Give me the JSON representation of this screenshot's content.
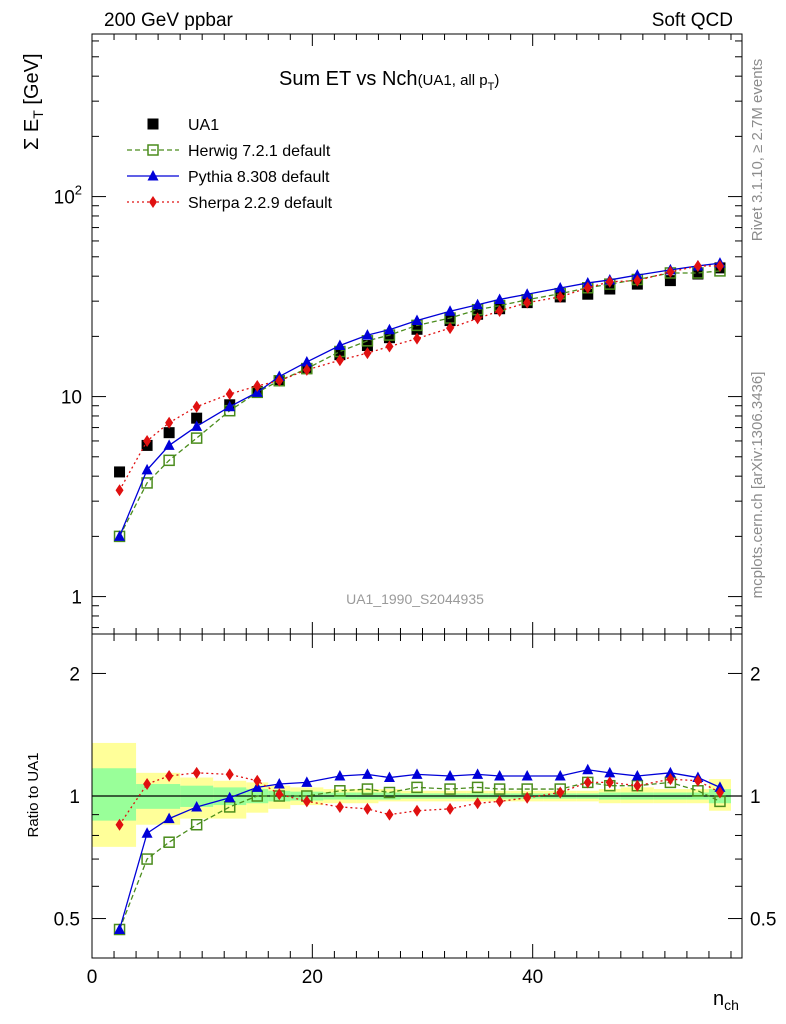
{
  "header": {
    "left": "200 GeV ppbar",
    "right": "Soft QCD"
  },
  "side_text": {
    "top": "Rivet 3.1.10, ≥ 2.7M events",
    "bottom": "mcplots.cern.ch [arXiv:1306.3436]"
  },
  "analysis_id": "UA1_1990_S2044935",
  "chart_data": [
    {
      "type": "line",
      "title": "Sum ET vs Nch",
      "title_suffix": "(UA1, all p",
      "title_sub": "T",
      "title_close": ")",
      "ylabel": "Σ E",
      "ylabel_sub": "T",
      "ylabel_unit": " [GeV]",
      "yscale": "log",
      "ylim": [
        0.65,
        650
      ],
      "xlim": [
        0,
        59
      ],
      "yticks": [
        {
          "v": 1,
          "label": "1",
          "sup": ""
        },
        {
          "v": 10,
          "label": "10",
          "sup": ""
        },
        {
          "v": 100,
          "label": "10",
          "sup": "2"
        }
      ],
      "x": [
        2.5,
        5,
        7,
        9.5,
        12.5,
        15,
        17,
        19.5,
        22.5,
        25,
        27,
        29.5,
        32.5,
        35,
        37,
        39.5,
        42.5,
        45,
        47,
        49.5,
        52.5,
        55,
        57
      ],
      "legend": "top-left",
      "series": [
        {
          "name": "UA1",
          "color": "#000000",
          "marker": "square",
          "line": "none",
          "values": [
            4.2,
            5.7,
            6.6,
            7.8,
            9.1,
            10.6,
            12.0,
            13.8,
            16.2,
            18.0,
            19.7,
            21.7,
            24.0,
            25.8,
            27.5,
            29.5,
            31.5,
            32.5,
            34.5,
            36.5,
            38.0,
            41.0,
            44.0
          ]
        },
        {
          "name": "Herwig 7.2.1 default",
          "color": "#4a8c1c",
          "marker": "open-square",
          "line": "dashed",
          "values": [
            2.0,
            3.7,
            4.8,
            6.2,
            8.5,
            10.5,
            12.0,
            13.8,
            16.8,
            19.0,
            20.3,
            22.7,
            24.7,
            27.2,
            28.5,
            30.5,
            32.7,
            35.0,
            36.5,
            38.5,
            41.5,
            41.5,
            42.5
          ]
        },
        {
          "name": "Pythia 8.308 default",
          "color": "#0000d8",
          "marker": "triangle",
          "line": "solid",
          "values": [
            2.0,
            4.3,
            5.7,
            7.1,
            8.9,
            10.5,
            12.6,
            14.9,
            18.0,
            20.3,
            21.6,
            24.0,
            26.7,
            28.8,
            30.6,
            32.5,
            34.9,
            37.0,
            38.3,
            40.5,
            43.0,
            45.0,
            46.5
          ]
        },
        {
          "name": "Sherpa 2.2.9 default",
          "color": "#e01010",
          "marker": "diamond",
          "line": "dotted",
          "values": [
            3.4,
            6.0,
            7.4,
            8.9,
            10.3,
            11.3,
            12.0,
            13.6,
            15.2,
            16.5,
            17.8,
            19.5,
            22.0,
            24.6,
            26.8,
            29.5,
            31.5,
            35.0,
            37.5,
            38.0,
            42.0,
            45.0,
            45.0
          ]
        }
      ]
    },
    {
      "type": "line",
      "ylabel": "Ratio to UA1",
      "xlabel": "n",
      "xlabel_sub": "ch",
      "yscale": "log",
      "ylim": [
        0.4,
        2.5
      ],
      "xlim": [
        0,
        59
      ],
      "yticks": [
        {
          "v": 0.5,
          "label": "0.5"
        },
        {
          "v": 1,
          "label": "1"
        },
        {
          "v": 2,
          "label": "2"
        }
      ],
      "xticks": [
        {
          "v": 0,
          "label": "0"
        },
        {
          "v": 20,
          "label": "20"
        },
        {
          "v": 40,
          "label": "40"
        }
      ],
      "bands": {
        "edges": [
          0,
          4,
          8,
          11,
          14,
          16,
          18,
          21,
          24,
          26,
          28,
          31,
          34,
          36,
          38,
          41,
          44,
          46,
          48,
          51,
          54,
          56,
          58
        ],
        "yellow": [
          [
            0.75,
            1.35
          ],
          [
            0.85,
            1.14
          ],
          [
            0.88,
            1.11
          ],
          [
            0.88,
            1.09
          ],
          [
            0.91,
            1.08
          ],
          [
            0.93,
            1.06
          ],
          [
            0.95,
            1.05
          ],
          [
            0.96,
            1.04
          ],
          [
            0.96,
            1.04
          ],
          [
            0.97,
            1.04
          ],
          [
            0.97,
            1.03
          ],
          [
            0.97,
            1.03
          ],
          [
            0.97,
            1.03
          ],
          [
            0.97,
            1.03
          ],
          [
            0.97,
            1.03
          ],
          [
            0.97,
            1.03
          ],
          [
            0.97,
            1.03
          ],
          [
            0.96,
            1.04
          ],
          [
            0.96,
            1.05
          ],
          [
            0.96,
            1.04
          ],
          [
            0.96,
            1.04
          ],
          [
            0.92,
            1.1
          ]
        ],
        "green": [
          [
            0.87,
            1.17
          ],
          [
            0.93,
            1.07
          ],
          [
            0.94,
            1.06
          ],
          [
            0.95,
            1.05
          ],
          [
            0.96,
            1.04
          ],
          [
            0.97,
            1.03
          ],
          [
            0.975,
            1.025
          ],
          [
            0.98,
            1.02
          ],
          [
            0.98,
            1.02
          ],
          [
            0.98,
            1.02
          ],
          [
            0.985,
            1.015
          ],
          [
            0.985,
            1.015
          ],
          [
            0.985,
            1.015
          ],
          [
            0.985,
            1.015
          ],
          [
            0.985,
            1.015
          ],
          [
            0.985,
            1.015
          ],
          [
            0.985,
            1.015
          ],
          [
            0.98,
            1.02
          ],
          [
            0.98,
            1.02
          ],
          [
            0.98,
            1.02
          ],
          [
            0.98,
            1.02
          ],
          [
            0.96,
            1.04
          ]
        ]
      },
      "x": [
        2.5,
        5,
        7,
        9.5,
        12.5,
        15,
        17,
        19.5,
        22.5,
        25,
        27,
        29.5,
        32.5,
        35,
        37,
        39.5,
        42.5,
        45,
        47,
        49.5,
        52.5,
        55,
        57
      ],
      "series": [
        {
          "name": "Herwig 7.2.1 default",
          "color": "#4a8c1c",
          "marker": "open-square",
          "line": "dashed",
          "values": [
            0.47,
            0.7,
            0.77,
            0.85,
            0.94,
            1.0,
            1.0,
            1.0,
            1.03,
            1.04,
            1.02,
            1.05,
            1.04,
            1.05,
            1.04,
            1.04,
            1.04,
            1.08,
            1.06,
            1.06,
            1.08,
            1.03,
            0.97
          ]
        },
        {
          "name": "Pythia 8.308 default",
          "color": "#0000d8",
          "marker": "triangle",
          "line": "solid",
          "values": [
            0.47,
            0.81,
            0.88,
            0.94,
            0.99,
            1.05,
            1.07,
            1.08,
            1.12,
            1.13,
            1.11,
            1.13,
            1.12,
            1.13,
            1.12,
            1.12,
            1.12,
            1.16,
            1.14,
            1.12,
            1.14,
            1.11,
            1.05
          ]
        },
        {
          "name": "Sherpa 2.2.9 default",
          "color": "#e01010",
          "marker": "diamond",
          "line": "dotted",
          "values": [
            0.85,
            1.07,
            1.12,
            1.14,
            1.13,
            1.09,
            1.01,
            0.97,
            0.94,
            0.93,
            0.9,
            0.92,
            0.93,
            0.96,
            0.97,
            0.99,
            1.02,
            1.08,
            1.08,
            1.06,
            1.1,
            1.09,
            1.02
          ]
        }
      ]
    }
  ]
}
